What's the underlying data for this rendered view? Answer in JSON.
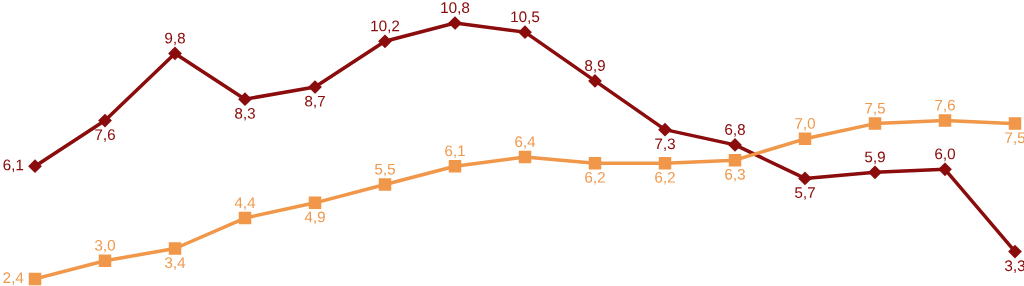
{
  "chart_data": {
    "type": "line",
    "categories": [
      null,
      null,
      null,
      null,
      null,
      null,
      null,
      null,
      null,
      null,
      null,
      null,
      null,
      null,
      null
    ],
    "legend": false,
    "series": [
      {
        "color": "#8b0c0c",
        "marker": "diamond",
        "values": [
          6.1,
          7.6,
          9.8,
          8.3,
          8.7,
          10.2,
          10.8,
          10.5,
          8.9,
          7.3,
          6.8,
          5.7,
          5.9,
          6.0,
          3.3
        ],
        "value_labels": [
          "6,1",
          "7,6",
          "9,8",
          "8,3",
          "8,7",
          "10,2",
          "10,8",
          "10,5",
          "8,9",
          "7,3",
          "6,8",
          "5,7",
          "5,9",
          "6,0",
          "3,3"
        ]
      },
      {
        "color": "#f0974a",
        "marker": "square",
        "values": [
          2.4,
          3.0,
          3.4,
          4.4,
          4.9,
          5.5,
          6.1,
          6.4,
          6.2,
          6.2,
          6.3,
          7.0,
          7.5,
          7.6,
          7.5
        ],
        "value_labels": [
          "2,4",
          "3,0",
          "3,4",
          "4,4",
          "4,9",
          "5,5",
          "6,1",
          "6,4",
          "6,2",
          "6,2",
          "6,3",
          "7,0",
          "7,5",
          "7,6",
          "7,5"
        ]
      }
    ]
  }
}
